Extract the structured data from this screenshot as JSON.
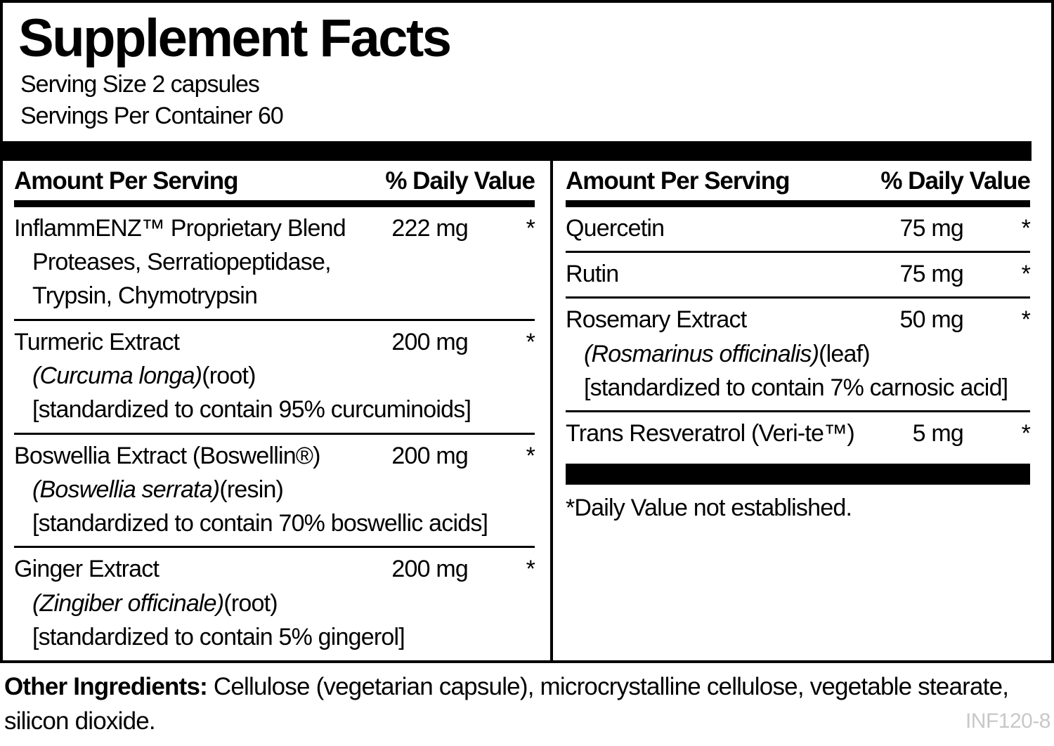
{
  "label": {
    "title": "Supplement Facts",
    "serving_size": "Serving Size 2 capsules",
    "servings_per_container": "Servings Per Container 60",
    "table_header": {
      "amount": "Amount Per Serving",
      "daily_value": "% Daily Value"
    },
    "columns": {
      "left": {
        "rows": [
          {
            "name": "InflammENZ™ Proprietary Blend",
            "amount": "222 mg",
            "daily_value": "*",
            "sub_lines": [
              {
                "italic": "",
                "text": "Proteases, Serratiopeptidase,"
              },
              {
                "italic": "",
                "text": "Trypsin, Chymotrypsin"
              }
            ]
          },
          {
            "name": "Turmeric Extract",
            "amount": "200 mg",
            "daily_value": "*",
            "sub_lines": [
              {
                "italic": "(Curcuma longa)",
                "text": "(root)"
              },
              {
                "italic": "",
                "text": "[standardized to contain 95% curcuminoids]"
              }
            ]
          },
          {
            "name": "Boswellia Extract (Boswellin®)",
            "amount": "200 mg",
            "daily_value": "*",
            "sub_lines": [
              {
                "italic": "(Boswellia serrata)",
                "text": "(resin)"
              },
              {
                "italic": "",
                "text": "[standardized to contain 70% boswellic acids]"
              }
            ]
          },
          {
            "name": "Ginger Extract",
            "amount": "200 mg",
            "daily_value": "*",
            "sub_lines": [
              {
                "italic": "(Zingiber officinale)",
                "text": "(root)"
              },
              {
                "italic": "",
                "text": "[standardized to contain 5% gingerol]"
              }
            ]
          }
        ]
      },
      "right": {
        "rows": [
          {
            "name": "Quercetin",
            "amount": "75 mg",
            "daily_value": "*",
            "sub_lines": []
          },
          {
            "name": "Rutin",
            "amount": "75 mg",
            "daily_value": "*",
            "sub_lines": []
          },
          {
            "name": "Rosemary Extract",
            "amount": "50 mg",
            "daily_value": "*",
            "sub_lines": [
              {
                "italic": "(Rosmarinus officinalis)",
                "text": "(leaf)"
              },
              {
                "italic": "",
                "text": "[standardized to contain 7% carnosic acid]"
              }
            ]
          },
          {
            "name": "Trans Resveratrol (Veri-te™)",
            "amount": "5 mg",
            "daily_value": "*",
            "sub_lines": []
          }
        ],
        "footnote": "*Daily Value not established."
      }
    },
    "footer": {
      "other_ingredients_label": "Other Ingredients:",
      "other_ingredients_text": " Cellulose (vegetarian capsule), microcrystalline cellulose, vegetable stearate, silicon dioxide.",
      "product_code": "INF120-8"
    },
    "colors": {
      "ink": "#000000",
      "background": "#ffffff",
      "code_gray": "#c8c8c8"
    }
  }
}
